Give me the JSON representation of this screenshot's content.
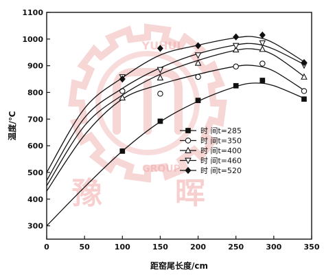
{
  "watermark": {
    "left_glyph": "豫",
    "right_glyph": "晖",
    "ring_top": "YUHUI",
    "ring_bottom": "GROUP",
    "color": "#e88a8a"
  },
  "chart_data": {
    "type": "line",
    "xlabel": "距窑尾长度/cm",
    "ylabel": "温度/℃",
    "xlim": [
      0,
      350
    ],
    "ylim": [
      250,
      1100
    ],
    "xticks": [
      0,
      50,
      100,
      150,
      200,
      250,
      300,
      350
    ],
    "yticks": [
      300,
      400,
      500,
      600,
      700,
      800,
      900,
      1000,
      1100
    ],
    "grid": false,
    "legend_position": "right-center",
    "series": [
      {
        "name": "时 间t=285",
        "marker": "square-filled",
        "markers": [
          [
            100,
            580
          ],
          [
            150,
            692
          ],
          [
            200,
            770
          ],
          [
            250,
            825
          ],
          [
            285,
            845
          ],
          [
            340,
            775
          ]
        ],
        "curve": [
          [
            0,
            300
          ],
          [
            50,
            445
          ],
          [
            100,
            580
          ],
          [
            150,
            690
          ],
          [
            200,
            767
          ],
          [
            250,
            822
          ],
          [
            275,
            835
          ],
          [
            300,
            825
          ],
          [
            340,
            778
          ]
        ]
      },
      {
        "name": "时 间t=350",
        "marker": "circle-open",
        "markers": [
          [
            100,
            805
          ],
          [
            150,
            795
          ],
          [
            200,
            858
          ],
          [
            250,
            897
          ],
          [
            285,
            908
          ],
          [
            340,
            805
          ]
        ],
        "curve": [
          [
            0,
            430
          ],
          [
            50,
            640
          ],
          [
            100,
            775
          ],
          [
            150,
            830
          ],
          [
            200,
            868
          ],
          [
            250,
            898
          ],
          [
            275,
            900
          ],
          [
            300,
            880
          ],
          [
            340,
            808
          ]
        ]
      },
      {
        "name": "时 间t=400",
        "marker": "triangle-up-open",
        "markers": [
          [
            100,
            780
          ],
          [
            150,
            855
          ],
          [
            200,
            910
          ],
          [
            250,
            960
          ],
          [
            285,
            962
          ],
          [
            340,
            858
          ]
        ],
        "curve": [
          [
            0,
            450
          ],
          [
            50,
            675
          ],
          [
            100,
            790
          ],
          [
            150,
            868
          ],
          [
            200,
            920
          ],
          [
            250,
            958
          ],
          [
            275,
            962
          ],
          [
            300,
            940
          ],
          [
            340,
            860
          ]
        ]
      },
      {
        "name": "时 间t=460",
        "marker": "triangle-down-open",
        "markers": [
          [
            100,
            858
          ],
          [
            150,
            885
          ],
          [
            200,
            940
          ],
          [
            250,
            975
          ],
          [
            285,
            985
          ],
          [
            340,
            902
          ]
        ],
        "curve": [
          [
            0,
            470
          ],
          [
            50,
            705
          ],
          [
            100,
            815
          ],
          [
            150,
            892
          ],
          [
            200,
            945
          ],
          [
            250,
            978
          ],
          [
            275,
            982
          ],
          [
            300,
            962
          ],
          [
            340,
            905
          ]
        ]
      },
      {
        "name": "时 间t=520",
        "marker": "diamond-filled",
        "markers": [
          [
            100,
            850
          ],
          [
            150,
            965
          ],
          [
            200,
            975
          ],
          [
            250,
            1008
          ],
          [
            285,
            1015
          ],
          [
            340,
            912
          ]
        ],
        "curve": [
          [
            0,
            500
          ],
          [
            50,
            740
          ],
          [
            100,
            855
          ],
          [
            150,
            940
          ],
          [
            200,
            977
          ],
          [
            250,
            1005
          ],
          [
            275,
            1008
          ],
          [
            300,
            985
          ],
          [
            340,
            915
          ]
        ]
      }
    ]
  }
}
